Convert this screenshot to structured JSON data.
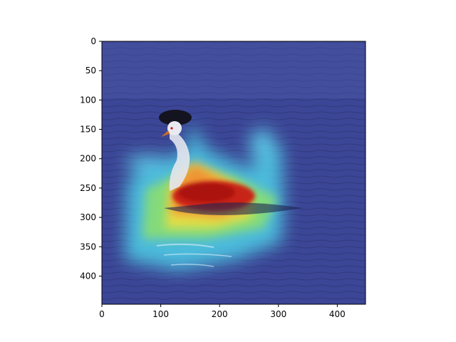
{
  "chart_data": {
    "type": "heatmap",
    "title": "",
    "xlabel": "",
    "ylabel": "",
    "xlim": [
      0,
      448
    ],
    "ylim": [
      448,
      0
    ],
    "x_ticks": [
      "0",
      "100",
      "200",
      "300",
      "400"
    ],
    "y_ticks": [
      "0",
      "50",
      "100",
      "150",
      "200",
      "250",
      "300",
      "350",
      "400"
    ],
    "grid": false,
    "colormap": "jet",
    "overlay": "saliency heatmap over photo of a grebe swimming on water"
  },
  "colors": {
    "water_low": "#3c4696",
    "heat_high": "#c80f0f",
    "bird_head": "#141420",
    "bird_neck": "#e6e8ee"
  }
}
